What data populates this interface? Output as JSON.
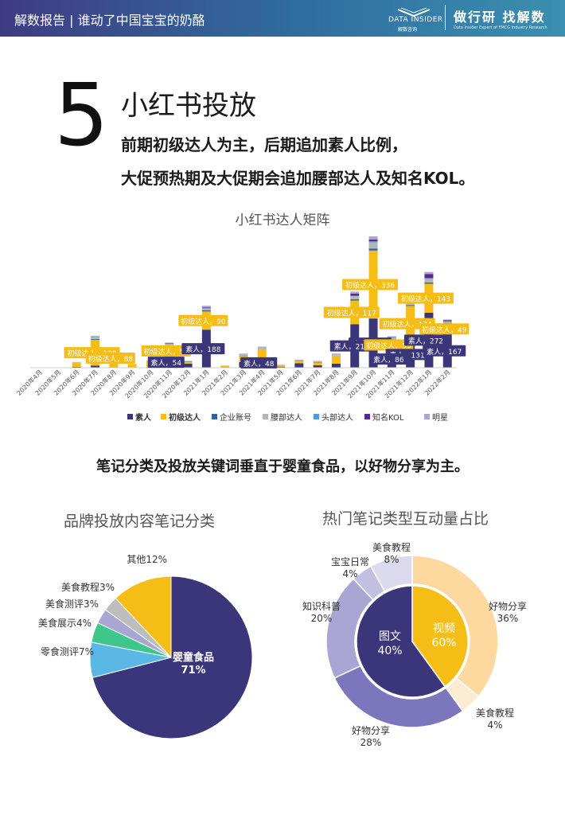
{
  "header": {
    "title": "解数报告 | 谁动了中国宝宝的奶酪",
    "logo_text": "DATA INSIDER",
    "logo_sub": "解数咨询",
    "slogan": "做行研 找解数",
    "slogan_sub": "Data Insider Expert of FMCG Industry Research"
  },
  "section": {
    "number": "5",
    "title": "小红书投放",
    "line1": "前期初级达人为主，后期追加素人比例，",
    "line2": "大促预热期及大促期会追加腰部达人及知名KOL。"
  },
  "colors": {
    "suren": "#3b3679",
    "chuji": "#f6bd16",
    "qiye": "#2f6497",
    "yaobu": "#b5b5b5",
    "toubu": "#4a9fd8",
    "kol": "#5a2a8a",
    "mingxing": "#a9a6d4"
  },
  "chart_data": [
    {
      "type": "bar",
      "stacked": true,
      "title": "小红书达人矩阵",
      "categories": [
        "2020年4月",
        "2020年5月",
        "2020年6月",
        "2020年7月",
        "2020年8月",
        "2020年9月",
        "2020年10月",
        "2020年11月",
        "2020年12月",
        "2021年1月",
        "2021年2月",
        "2021年3月",
        "2021年4月",
        "2021年5月",
        "2021年6月",
        "2021年7月",
        "2021年8月",
        "2021年9月",
        "2021年10月",
        "2021年11月",
        "2021年12月",
        "2022年1月",
        "2022年2月"
      ],
      "series": [
        {
          "name": "素人",
          "values": [
            0,
            0,
            4,
            10,
            3,
            2,
            3,
            54,
            20,
            188,
            3,
            28,
            48,
            5,
            22,
            12,
            20,
            215,
            243,
            86,
            131,
            272,
            167
          ]
        },
        {
          "name": "初级达人",
          "values": [
            0,
            0,
            22,
            128,
            88,
            14,
            30,
            58,
            8,
            90,
            6,
            28,
            40,
            8,
            10,
            14,
            40,
            117,
            336,
            53,
            174,
            143,
            49
          ]
        },
        {
          "name": "企业账号",
          "values": [
            0,
            0,
            0,
            4,
            0,
            0,
            0,
            0,
            2,
            6,
            0,
            2,
            0,
            0,
            2,
            2,
            0,
            6,
            10,
            2,
            4,
            6,
            4
          ]
        },
        {
          "name": "腰部达人",
          "values": [
            0,
            0,
            2,
            10,
            4,
            2,
            2,
            8,
            4,
            8,
            2,
            10,
            12,
            2,
            4,
            4,
            6,
            16,
            30,
            8,
            14,
            18,
            8
          ]
        },
        {
          "name": "头部达人",
          "values": [
            0,
            0,
            0,
            2,
            0,
            0,
            0,
            0,
            0,
            2,
            0,
            0,
            0,
            0,
            0,
            0,
            0,
            2,
            6,
            0,
            2,
            4,
            2
          ]
        },
        {
          "name": "知名KOL",
          "values": [
            0,
            0,
            0,
            0,
            0,
            0,
            0,
            2,
            0,
            4,
            0,
            0,
            0,
            0,
            0,
            0,
            0,
            10,
            8,
            2,
            6,
            20,
            4
          ]
        },
        {
          "name": "明星",
          "values": [
            0,
            0,
            0,
            4,
            2,
            0,
            0,
            2,
            0,
            8,
            0,
            2,
            4,
            0,
            2,
            2,
            4,
            10,
            16,
            4,
            6,
            10,
            4
          ]
        }
      ],
      "labels": [
        {
          "text": "初级达人，128",
          "cat": 3,
          "series": "初级达人"
        },
        {
          "text": "初级达人，88",
          "cat": 4,
          "series": "初级达人"
        },
        {
          "text": "初级达人，58",
          "cat": 7,
          "series": "初级达人"
        },
        {
          "text": "素人，54",
          "cat": 7,
          "series": "素人"
        },
        {
          "text": "初级达人，90",
          "cat": 9,
          "series": "初级达人"
        },
        {
          "text": "素人，188",
          "cat": 9,
          "series": "素人"
        },
        {
          "text": "素人，48",
          "cat": 12,
          "series": "素人"
        },
        {
          "text": "初级达人，336",
          "cat": 18,
          "series": "初级达人"
        },
        {
          "text": "初级达人，117",
          "cat": 17,
          "series": "初级达人"
        },
        {
          "text": "素人，243",
          "cat": 18,
          "series": "素人"
        },
        {
          "text": "素人，215",
          "cat": 17,
          "series": "素人"
        },
        {
          "text": "初级达人，143",
          "cat": 21,
          "series": "初级达人"
        },
        {
          "text": "初级达人，174",
          "cat": 20,
          "series": "初级达人"
        },
        {
          "text": "初级达人，53",
          "cat": 19,
          "series": "初级达人"
        },
        {
          "text": "初级达人，49",
          "cat": 22,
          "series": "初级达人"
        },
        {
          "text": "素人，272",
          "cat": 21,
          "series": "素人"
        },
        {
          "text": "素人，131",
          "cat": 20,
          "series": "素人"
        },
        {
          "text": "素人，86",
          "cat": 19,
          "series": "素人"
        },
        {
          "text": "素人，167",
          "cat": 22,
          "series": "素人"
        }
      ],
      "legend": "bottom",
      "ylim": [
        0,
        700
      ],
      "grid": false
    },
    {
      "type": "pie",
      "title": "品牌投放内容笔记分类",
      "slices": [
        {
          "label": "婴童食品",
          "value": 71,
          "text": "婴童食品",
          "pct": "71%"
        },
        {
          "label": "零食测评",
          "value": 7,
          "text": "零食测评7%"
        },
        {
          "label": "美食展示",
          "value": 4,
          "text": "美食展示4%"
        },
        {
          "label": "美食测评",
          "value": 3,
          "text": "美食测评3%"
        },
        {
          "label": "美食教程",
          "value": 3,
          "text": "美食教程3%"
        },
        {
          "label": "其他",
          "value": 12,
          "text": "其他12%"
        }
      ]
    },
    {
      "type": "pie",
      "title": "热门笔记类型互动量占比",
      "inner": [
        {
          "label": "视频",
          "value": 60,
          "pct": "60%"
        },
        {
          "label": "图文",
          "value": 40,
          "pct": "40%"
        }
      ],
      "outer": [
        {
          "label": "好物分享",
          "value": 36,
          "pct": "36%",
          "group": "图文"
        },
        {
          "label": "美食教程",
          "value": 4,
          "pct": "4%",
          "group": "图文"
        },
        {
          "label": "好物分享",
          "value": 28,
          "pct": "28%",
          "group": "视频"
        },
        {
          "label": "知识科普",
          "value": 20,
          "pct": "20%",
          "group": "视频"
        },
        {
          "label": "宝宝日常",
          "value": 4,
          "pct": "4%",
          "group": "视频"
        },
        {
          "label": "美食教程",
          "value": 8,
          "pct": "8%",
          "group": "视频"
        }
      ]
    }
  ],
  "middle_text": "笔记分类及投放关键词垂直于婴童食品，以好物分享为主。"
}
